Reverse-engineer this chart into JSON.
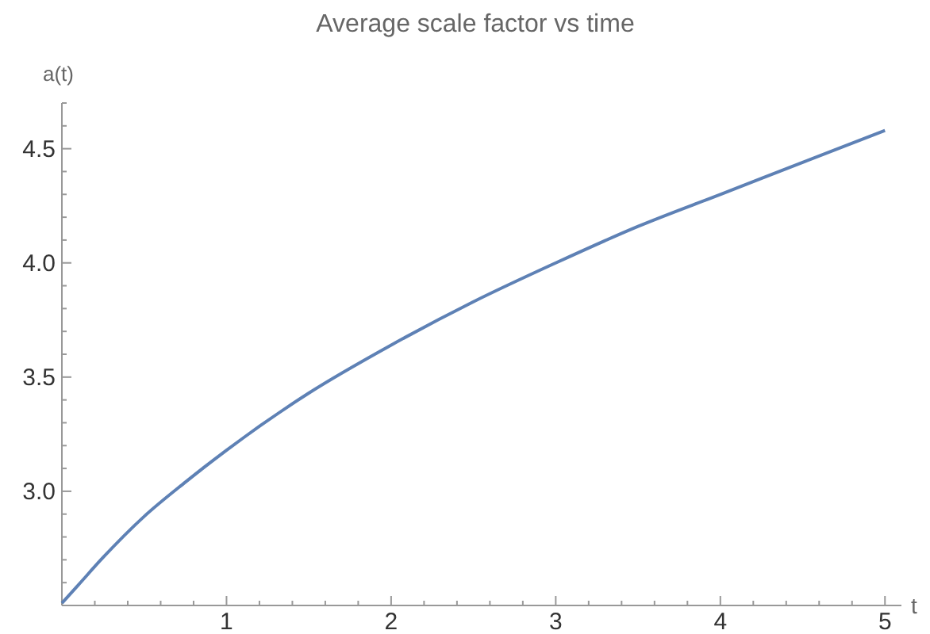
{
  "chart_data": {
    "type": "line",
    "title": "Average scale factor vs time",
    "xlabel": "t",
    "ylabel": "a(t)",
    "x": [
      0,
      0.05,
      0.1,
      0.25,
      0.5,
      0.75,
      1,
      1.5,
      2,
      2.5,
      3,
      3.5,
      4,
      4.5,
      5
    ],
    "series": [
      {
        "color": "#5e81b5",
        "values": [
          2.51,
          2.55,
          2.59,
          2.71,
          2.89,
          3.04,
          3.18,
          3.43,
          3.64,
          3.83,
          4.0,
          4.16,
          4.3,
          4.44,
          4.58
        ]
      }
    ],
    "xlim": [
      0,
      5.1
    ],
    "ylim": [
      2.5,
      4.7
    ],
    "xticks": [
      {
        "value": 0.2,
        "label": null
      },
      {
        "value": 0.4,
        "label": null
      },
      {
        "value": 0.6,
        "label": null
      },
      {
        "value": 0.8,
        "label": null
      },
      1,
      {
        "value": 1.2,
        "label": null
      },
      {
        "value": 1.4,
        "label": null
      },
      {
        "value": 1.6,
        "label": null
      },
      {
        "value": 1.8,
        "label": null
      },
      2,
      {
        "value": 2.2,
        "label": null
      },
      {
        "value": 2.4,
        "label": null
      },
      {
        "value": 2.6,
        "label": null
      },
      {
        "value": 2.8,
        "label": null
      },
      3,
      {
        "value": 3.2,
        "label": null
      },
      {
        "value": 3.4,
        "label": null
      },
      {
        "value": 3.6,
        "label": null
      },
      {
        "value": 3.8,
        "label": null
      },
      4,
      {
        "value": 4.2,
        "label": null
      },
      {
        "value": 4.4,
        "label": null
      },
      {
        "value": 4.6,
        "label": null
      },
      {
        "value": 4.8,
        "label": null
      },
      5
    ],
    "yticks": [
      {
        "value": 2.6,
        "label": null
      },
      {
        "value": 2.7,
        "label": null
      },
      {
        "value": 2.8,
        "label": null
      },
      {
        "value": 2.9,
        "label": null
      },
      {
        "value": 3,
        "label": "3.0"
      },
      {
        "value": 3.1,
        "label": null
      },
      {
        "value": 3.2,
        "label": null
      },
      {
        "value": 3.3,
        "label": null
      },
      {
        "value": 3.4,
        "label": null
      },
      3.5,
      {
        "value": 3.6,
        "label": null
      },
      {
        "value": 3.7,
        "label": null
      },
      {
        "value": 3.8,
        "label": null
      },
      {
        "value": 3.9,
        "label": null
      },
      {
        "value": 4,
        "label": "4.0"
      },
      {
        "value": 4.1,
        "label": null
      },
      {
        "value": 4.2,
        "label": null
      },
      {
        "value": 4.3,
        "label": null
      },
      {
        "value": 4.4,
        "label": null
      },
      4.5,
      {
        "value": 4.6,
        "label": null
      },
      {
        "value": 4.7,
        "label": null
      }
    ],
    "grid": false,
    "marker": "none",
    "line_style": "solid"
  }
}
